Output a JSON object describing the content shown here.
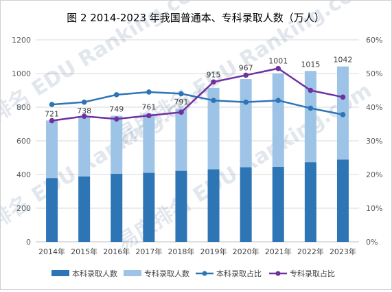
{
  "chart_data": {
    "type": "bar",
    "title": "图 2 2014-2023 年我国普通本、专科录取人数（万人）",
    "categories": [
      "2014年",
      "2015年",
      "2016年",
      "2017年",
      "2018年",
      "2019年",
      "2020年",
      "2021年",
      "2022年",
      "2023年"
    ],
    "series": [
      {
        "name": "本科录取人数",
        "type": "bar-stacked",
        "axis": "left",
        "color": "#2e75b6",
        "values": [
          379,
          389,
          405,
          410,
          422,
          431,
          443,
          445,
          473,
          489
        ]
      },
      {
        "name": "专科录取人数",
        "type": "bar-stacked",
        "axis": "left",
        "color": "#9dc3e6",
        "values": [
          342,
          349,
          344,
          351,
          369,
          484,
          524,
          556,
          542,
          553
        ]
      },
      {
        "name": "本科录取占比",
        "type": "line",
        "axis": "right",
        "color": "#2e75b6",
        "values": [
          0.408,
          0.415,
          0.437,
          0.445,
          0.44,
          0.42,
          0.415,
          0.42,
          0.397,
          0.378
        ]
      },
      {
        "name": "专科录取占比",
        "type": "line",
        "axis": "right",
        "color": "#7030a0",
        "values": [
          0.36,
          0.373,
          0.365,
          0.375,
          0.385,
          0.475,
          0.495,
          0.515,
          0.45,
          0.43
        ]
      }
    ],
    "total_labels": [
      "721",
      "738",
      "749",
      "761",
      "791",
      "915",
      "967",
      "1001",
      "1015",
      "1042"
    ],
    "ylim": [
      0,
      1200
    ],
    "yticks": [
      "0",
      "200",
      "400",
      "600",
      "800",
      "1000",
      "1200"
    ],
    "y2lim": [
      0,
      0.6
    ],
    "y2ticks": [
      "0%",
      "10%",
      "20%",
      "30%",
      "40%",
      "50%",
      "60%"
    ],
    "grid": true,
    "legend_position": "bottom",
    "watermark": "易度排名 EDU Ranking.com"
  }
}
